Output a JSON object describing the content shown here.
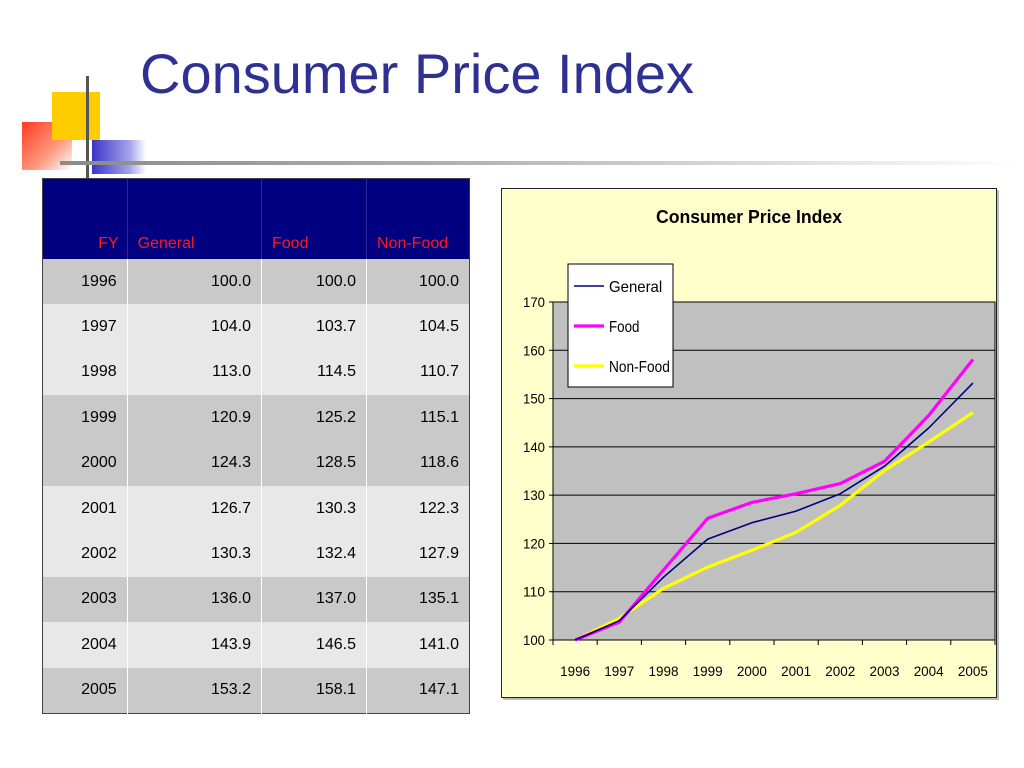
{
  "slide": {
    "title": "Consumer Price Index"
  },
  "table": {
    "headers": [
      "FY",
      "General",
      "Food",
      "Non-Food"
    ],
    "rows": [
      [
        "1996",
        "100.0",
        "100.0",
        "100.0"
      ],
      [
        "1997",
        "104.0",
        "103.7",
        "104.5"
      ],
      [
        "1998",
        "113.0",
        "114.5",
        "110.7"
      ],
      [
        "1999",
        "120.9",
        "125.2",
        "115.1"
      ],
      [
        "2000",
        "124.3",
        "128.5",
        "118.6"
      ],
      [
        "2001",
        "126.7",
        "130.3",
        "122.3"
      ],
      [
        "2002",
        "130.3",
        "132.4",
        "127.9"
      ],
      [
        "2003",
        "136.0",
        "137.0",
        "135.1"
      ],
      [
        "2004",
        "143.9",
        "146.5",
        "141.0"
      ],
      [
        "2005",
        "153.2",
        "158.1",
        "147.1"
      ]
    ]
  },
  "chart_data": {
    "type": "line",
    "title": "Consumer Price Index",
    "categories": [
      "1996",
      "1997",
      "1998",
      "1999",
      "2000",
      "2001",
      "2002",
      "2003",
      "2004",
      "2005"
    ],
    "series": [
      {
        "name": "General",
        "color": "#000080",
        "values": [
          100.0,
          104.0,
          113.0,
          120.9,
          124.3,
          126.7,
          130.3,
          136.0,
          143.9,
          153.2
        ]
      },
      {
        "name": "Food",
        "color": "#ff00ff",
        "values": [
          100.0,
          103.7,
          114.5,
          125.2,
          128.5,
          130.3,
          132.4,
          137.0,
          146.5,
          158.1
        ]
      },
      {
        "name": "Non-Food",
        "color": "#ffff00",
        "values": [
          100.0,
          104.5,
          110.7,
          115.1,
          118.6,
          122.3,
          127.9,
          135.1,
          141.0,
          147.1
        ]
      }
    ],
    "ylim": [
      100,
      170
    ],
    "yticks": [
      100,
      110,
      120,
      130,
      140,
      150,
      160,
      170
    ],
    "grid": true,
    "legend": "top-left",
    "plot_background": "#c0c0c0",
    "chart_background": "#ffffcc"
  }
}
